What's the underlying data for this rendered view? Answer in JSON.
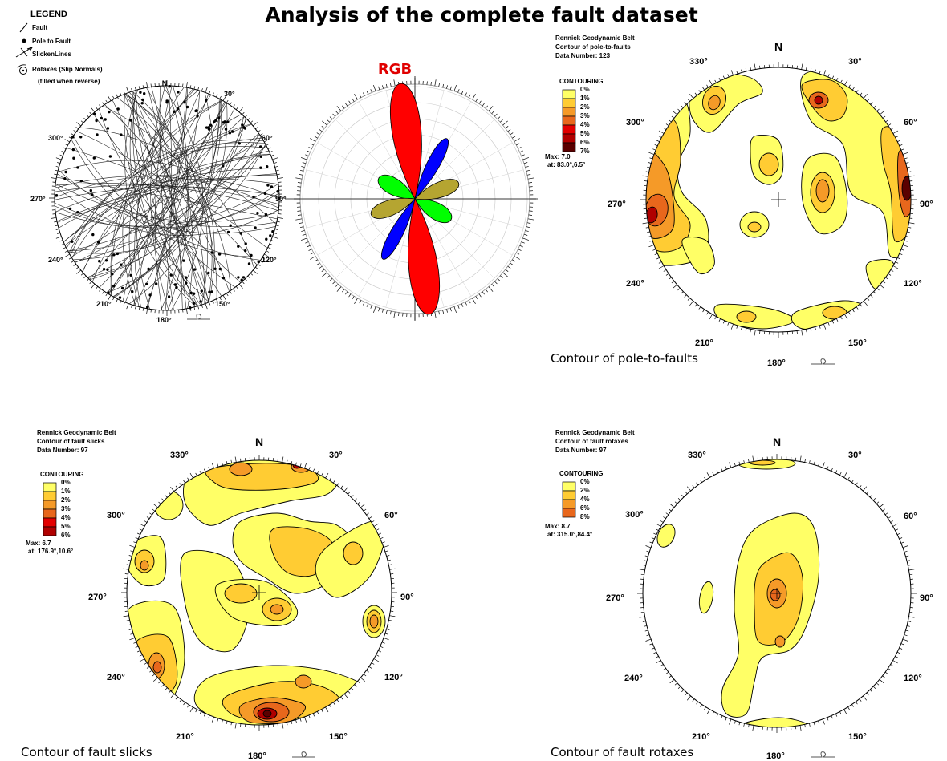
{
  "title": "Analysis of the complete fault dataset",
  "legend": {
    "heading": "LEGEND",
    "items": [
      {
        "name": "fault-line-icon",
        "label": "Fault"
      },
      {
        "name": "pole-dot-icon",
        "label": "Pole to Fault"
      },
      {
        "name": "slickenline-icon",
        "label": "SlickenLines"
      },
      {
        "name": "rotaxis-icon",
        "label": "Rotaxes (Slip Normals)"
      }
    ],
    "note": "(filled when reverse)"
  },
  "rose_label": "RGB",
  "colors": {
    "red": "#ff0000",
    "blue": "#0000ff",
    "green": "#00ff00",
    "olive": "#b5a531",
    "c1": "#ffff66",
    "c2": "#ffcc33",
    "c3": "#f59a28",
    "c4": "#e8671c",
    "c5": "#e30000",
    "c6": "#b00000",
    "c7": "#5a0000",
    "c8": "#3a0050"
  },
  "net_labels": {
    "n": "N",
    "d30": "30°",
    "d60": "60°",
    "d90": "90°",
    "d120": "120°",
    "d150": "150°",
    "d180": "180°",
    "d210": "210°",
    "d240": "240°",
    "d270": "270°",
    "d300": "300°",
    "d330": "330°"
  },
  "poles": {
    "header": [
      "Rennick Geodynamic Belt",
      "Contour of pole-to-faults",
      "Data Number: 123"
    ],
    "contouring": "CONTOURING",
    "levels": [
      "0%",
      "1%",
      "2%",
      "3%",
      "4%",
      "5%",
      "6%",
      "7%"
    ],
    "max": "Max: 7.0",
    "at": "at: 83.0°,6.5°",
    "caption": "Contour of pole-to-faults"
  },
  "slicks": {
    "header": [
      "Rennick Geodynamic Belt",
      "Contour of fault slicks",
      "Data Number: 97"
    ],
    "contouring": "CONTOURING",
    "levels": [
      "0%",
      "1%",
      "2%",
      "3%",
      "4%",
      "5%",
      "6%"
    ],
    "max": "Max: 6.7",
    "at": "at: 176.9°,10.6°",
    "caption": "Contour of fault slicks"
  },
  "rotaxes": {
    "header": [
      "Rennick Geodynamic Belt",
      "Contour of fault rotaxes",
      "Data Number: 97"
    ],
    "contouring": "CONTOURING",
    "levels": [
      "0%",
      "2%",
      "4%",
      "6%",
      "8%"
    ],
    "max": "Max: 8.7",
    "at": "at: 315.0°,84.4°",
    "caption": "Contour of fault rotaxes"
  }
}
